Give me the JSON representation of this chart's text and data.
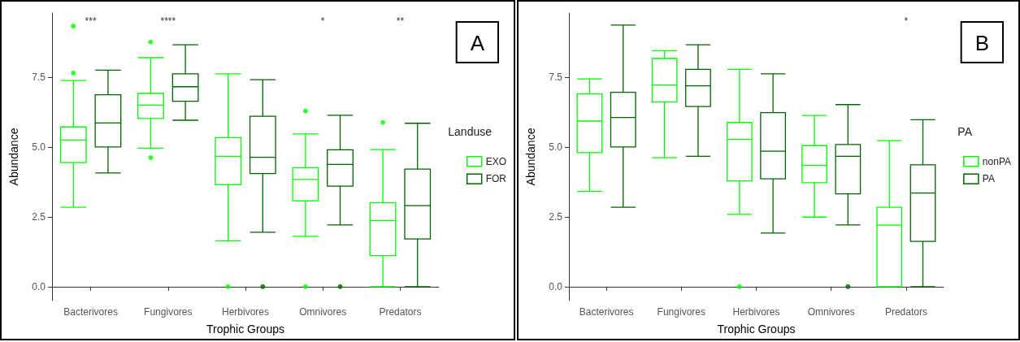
{
  "chart_data": [
    {
      "type": "box",
      "xlabel": "Trophic Groups",
      "ylabel": "Abundance",
      "legend_title": "Landuse",
      "legend": "right",
      "marker": "circle",
      "categories": [
        "Bacterivores",
        "Fungivores",
        "Herbivores",
        "Omnivores",
        "Predators"
      ],
      "ylim": [
        -0.5,
        9.8
      ],
      "yticks": [
        {
          "value": 0,
          "label": "0.0"
        },
        {
          "value": 2.5,
          "label": "2.5"
        },
        {
          "value": 5,
          "label": "5.0"
        },
        {
          "value": 7.5,
          "label": "7.5"
        }
      ],
      "series": [
        {
          "name": "EXO",
          "color": "#00ff00",
          "boxes": [
            {
              "low": 2.84,
              "q1": 4.44,
              "median": 5.25,
              "q3": 5.72,
              "high": 7.38,
              "outliers": [
                9.33,
                7.65
              ]
            },
            {
              "low": 4.96,
              "q1": 6.02,
              "median": 6.5,
              "q3": 6.92,
              "high": 8.2,
              "outliers": [
                8.76,
                4.62
              ]
            },
            {
              "low": 1.64,
              "q1": 3.65,
              "median": 4.67,
              "q3": 5.34,
              "high": 7.62,
              "outliers": [
                0
              ]
            },
            {
              "low": 1.8,
              "q1": 3.07,
              "median": 3.84,
              "q3": 4.26,
              "high": 5.47,
              "outliers": [
                6.29,
                0
              ]
            },
            {
              "low": 0,
              "q1": 1.11,
              "median": 2.36,
              "q3": 3.0,
              "high": 4.91,
              "outliers": [
                5.88
              ]
            }
          ]
        },
        {
          "name": "FOR",
          "color": "#006400",
          "boxes": [
            {
              "low": 4.07,
              "q1": 5.0,
              "median": 5.86,
              "q3": 6.87,
              "high": 7.75
            },
            {
              "low": 5.96,
              "q1": 6.64,
              "median": 7.16,
              "q3": 7.62,
              "high": 8.66
            },
            {
              "low": 1.95,
              "q1": 4.05,
              "median": 4.63,
              "q3": 6.1,
              "high": 7.41,
              "outliers": [
                0
              ]
            },
            {
              "low": 2.21,
              "q1": 3.6,
              "median": 4.38,
              "q3": 4.9,
              "high": 6.14,
              "outliers": [
                0
              ]
            },
            {
              "low": 0,
              "q1": 1.71,
              "median": 2.9,
              "q3": 4.21,
              "high": 5.85
            }
          ]
        }
      ],
      "annotations": [
        "A",
        "***",
        "****",
        "*",
        "**"
      ]
    },
    {
      "type": "box",
      "xlabel": "Trophic Groups",
      "ylabel": "Abundance",
      "legend_title": "PA",
      "legend": "right",
      "marker": "circle",
      "categories": [
        "Bacterivores",
        "Fungivores",
        "Herbivores",
        "Omnivores",
        "Predators"
      ],
      "ylim": [
        -0.5,
        9.8
      ],
      "yticks": [
        {
          "value": 0,
          "label": "0.0"
        },
        {
          "value": 2.5,
          "label": "2.5"
        },
        {
          "value": 5,
          "label": "5.0"
        },
        {
          "value": 7.5,
          "label": "7.5"
        }
      ],
      "series": [
        {
          "name": "nonPA",
          "color": "#00ff00",
          "boxes": [
            {
              "low": 3.41,
              "q1": 4.8,
              "median": 5.93,
              "q3": 6.9,
              "high": 7.44
            },
            {
              "low": 4.62,
              "q1": 6.61,
              "median": 7.22,
              "q3": 8.17,
              "high": 8.45
            },
            {
              "low": 2.59,
              "q1": 3.79,
              "median": 5.27,
              "q3": 5.88,
              "high": 7.78,
              "outliers": [
                0
              ]
            },
            {
              "low": 2.49,
              "q1": 3.72,
              "median": 4.34,
              "q3": 5.05,
              "high": 6.13
            },
            {
              "low": 0,
              "q1": 0,
              "median": 2.2,
              "q3": 2.84,
              "high": 5.23
            }
          ]
        },
        {
          "name": "PA",
          "color": "#006400",
          "boxes": [
            {
              "low": 2.84,
              "q1": 5.0,
              "median": 6.06,
              "q3": 6.96,
              "high": 9.37
            },
            {
              "low": 4.67,
              "q1": 6.45,
              "median": 7.19,
              "q3": 7.78,
              "high": 8.66
            },
            {
              "low": 1.92,
              "q1": 3.86,
              "median": 4.85,
              "q3": 6.23,
              "high": 7.62
            },
            {
              "low": 2.21,
              "q1": 3.32,
              "median": 4.67,
              "q3": 5.09,
              "high": 6.52,
              "outliers": [
                0
              ]
            },
            {
              "low": 0,
              "q1": 1.62,
              "median": 3.35,
              "q3": 4.36,
              "high": 5.98
            }
          ]
        }
      ],
      "annotations": [
        "B",
        "*"
      ]
    }
  ]
}
